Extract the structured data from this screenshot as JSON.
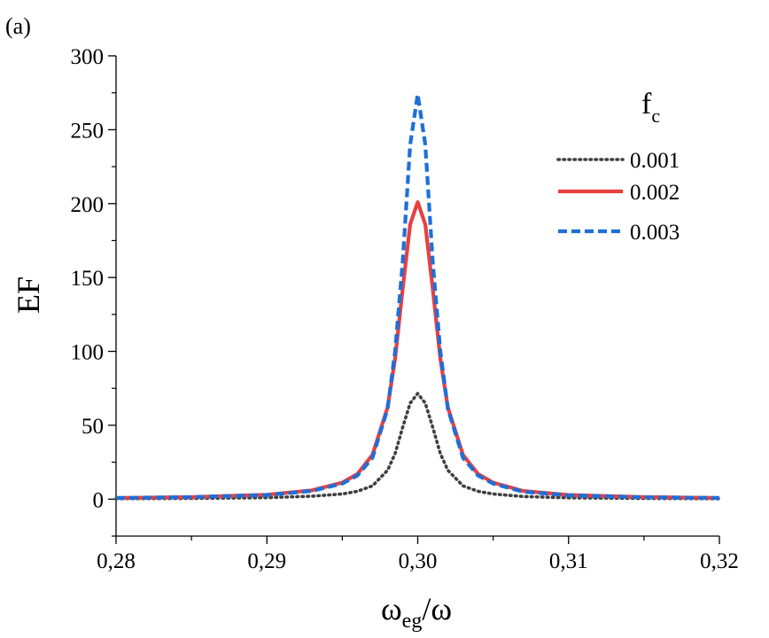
{
  "chart_data": {
    "type": "line",
    "panel_label": "(a)",
    "xlabel": {
      "base": "ω",
      "subscript": "eg",
      "suffix": "/ω"
    },
    "ylabel": "EF",
    "xlim": [
      0.28,
      0.32
    ],
    "ylim": [
      -25,
      300
    ],
    "x_ticks": [
      0.28,
      0.29,
      0.3,
      0.31,
      0.32
    ],
    "x_tick_labels": [
      "0,28",
      "0,29",
      "0,30",
      "0,31",
      "0,32"
    ],
    "y_ticks": [
      0,
      50,
      100,
      150,
      200,
      250,
      300
    ],
    "y_tick_labels": [
      "0",
      "50",
      "100",
      "150",
      "200",
      "250",
      "300"
    ],
    "legend": {
      "title_base": "f",
      "title_subscript": "c",
      "position": "top-right"
    },
    "series": [
      {
        "name": "0.001",
        "color": "#3f3f3f",
        "style": "dotted",
        "x": [
          0.28,
          0.285,
          0.29,
          0.293,
          0.295,
          0.296,
          0.297,
          0.298,
          0.2985,
          0.299,
          0.2995,
          0.3,
          0.3005,
          0.301,
          0.3015,
          0.302,
          0.303,
          0.304,
          0.305,
          0.307,
          0.31,
          0.315,
          0.32
        ],
        "y": [
          0.3,
          0.5,
          1.0,
          2.0,
          3.5,
          5.3,
          9.0,
          19.5,
          30.8,
          48.5,
          65.0,
          71.5,
          65.0,
          48.5,
          30.8,
          19.5,
          9.0,
          5.3,
          3.5,
          1.8,
          0.9,
          0.5,
          0.3
        ]
      },
      {
        "name": "0.002",
        "color": "#e84040",
        "style": "solid",
        "x": [
          0.28,
          0.285,
          0.29,
          0.293,
          0.295,
          0.296,
          0.297,
          0.298,
          0.2985,
          0.299,
          0.2995,
          0.3,
          0.3005,
          0.301,
          0.3015,
          0.302,
          0.303,
          0.304,
          0.305,
          0.307,
          0.31,
          0.315,
          0.32
        ],
        "y": [
          0.8,
          1.4,
          3.0,
          6.0,
          11.2,
          17.0,
          30.0,
          62.0,
          95.0,
          142.0,
          186.0,
          201.0,
          186.0,
          142.0,
          95.0,
          62.0,
          30.0,
          17.0,
          11.2,
          5.5,
          2.8,
          1.4,
          0.8
        ]
      },
      {
        "name": "0.003",
        "color": "#1e6fd9",
        "style": "dashed",
        "x": [
          0.28,
          0.285,
          0.29,
          0.293,
          0.295,
          0.296,
          0.297,
          0.298,
          0.2985,
          0.299,
          0.2995,
          0.3,
          0.3005,
          0.301,
          0.3015,
          0.302,
          0.303,
          0.304,
          0.305,
          0.307,
          0.31,
          0.315,
          0.32
        ],
        "y": [
          0.8,
          1.4,
          2.8,
          5.6,
          10.5,
          16.0,
          28.0,
          61.0,
          100.0,
          160.0,
          240.0,
          274.0,
          240.0,
          160.0,
          100.0,
          61.0,
          28.0,
          16.0,
          10.5,
          5.0,
          2.6,
          1.3,
          0.8
        ]
      }
    ]
  }
}
